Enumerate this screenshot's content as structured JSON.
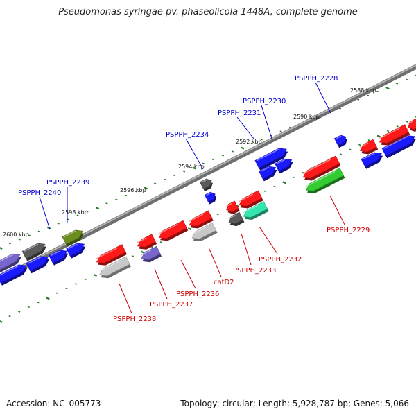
{
  "title": "Pseudomonas syringae pv. phaseolicola 1448A, complete genome",
  "footer": {
    "accession": "Accession: NC_005773",
    "stats": "Topology: circular; Length: 5,928,787 bp; Genes: 5,066"
  },
  "scale_labels": [
    "2588 kbp",
    "2590 kbp",
    "2592 kbp",
    "2594 kbp",
    "2596 kbp",
    "2598 kbp",
    "2600 kbp"
  ],
  "forward_gene_labels": [
    "PSPPH_2228",
    "PSPPH_2230",
    "PSPPH_2231",
    "PSPPH_2234",
    "PSPPH_2239",
    "PSPPH_2240"
  ],
  "reverse_gene_labels": [
    "PSPPH_2229",
    "PSPPH_2232",
    "PSPPH_2233",
    "catD2",
    "PSPPH_2236",
    "PSPPH_2237",
    "PSPPH_2238"
  ],
  "colors": {
    "forward_label": "#0000cc",
    "reverse_label": "#cc0000",
    "blue_gene": "#1a1aff",
    "red_gene": "#ff1a1a",
    "gray_gene": "#5a5a5a",
    "light_gray_gene": "#c8c8c8",
    "olive_gene": "#6b8c1e",
    "green_gene": "#33cc33",
    "teal_gene": "#33e6b0",
    "purple_gene": "#7766cc",
    "backbone": "#8a8a8a",
    "tick_dot": "#2a7a2a"
  }
}
